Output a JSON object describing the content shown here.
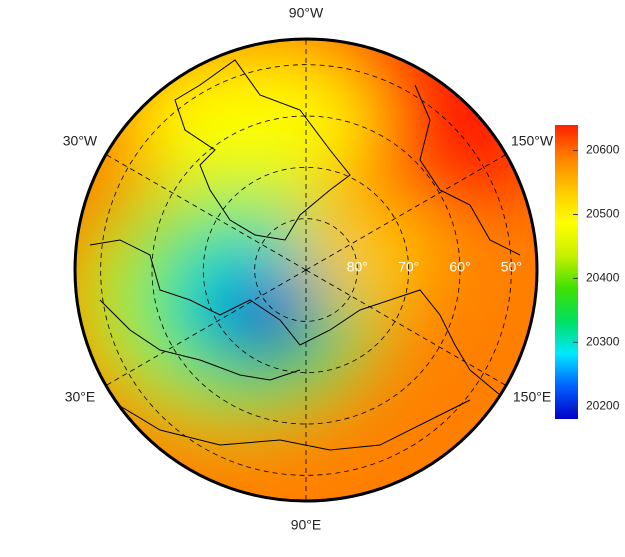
{
  "map": {
    "type": "polar-field",
    "edge_latitude": 45,
    "longitude_labels": [
      {
        "value": -90,
        "label": "90°W"
      },
      {
        "value": -30,
        "label": "30°W"
      },
      {
        "value": -150,
        "label": "150°W"
      },
      {
        "value": 30,
        "label": "30°E"
      },
      {
        "value": 150,
        "label": "150°E"
      },
      {
        "value": 90,
        "label": "90°E"
      }
    ],
    "latitude_labels": [
      {
        "value": 80,
        "label": "80°"
      },
      {
        "value": 70,
        "label": "70°"
      },
      {
        "value": 60,
        "label": "60°"
      },
      {
        "value": 50,
        "label": "50°"
      }
    ],
    "colorbar": {
      "lim": [
        20180,
        20640
      ],
      "ticks": [
        20200,
        20300,
        20400,
        20500,
        20600
      ],
      "colors": [
        "#0000c8",
        "#0060ff",
        "#00e8ff",
        "#00e060",
        "#40e000",
        "#c8f000",
        "#ffff00",
        "#ffc800",
        "#ff8000",
        "#ff2000"
      ]
    }
  }
}
